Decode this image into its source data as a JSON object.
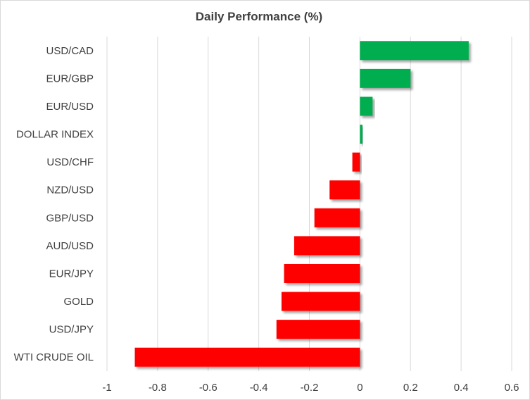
{
  "chart_data": {
    "type": "bar",
    "orientation": "horizontal",
    "title": "Daily Performance (%)",
    "categories": [
      "USD/CAD",
      "EUR/GBP",
      "EUR/USD",
      "DOLLAR INDEX",
      "USD/CHF",
      "NZD/USD",
      "GBP/USD",
      "AUD/USD",
      "EUR/JPY",
      "GOLD",
      "USD/JPY",
      "WTI CRUDE OIL"
    ],
    "values": [
      0.43,
      0.2,
      0.05,
      0.01,
      -0.03,
      -0.12,
      -0.18,
      -0.26,
      -0.3,
      -0.31,
      -0.33,
      -0.89
    ],
    "xlim": [
      -1,
      0.6
    ],
    "xticks": [
      "-1",
      "-0.8",
      "-0.6",
      "-0.4",
      "-0.2",
      "0",
      "0.2",
      "0.4",
      "0.6"
    ],
    "grid": true,
    "legend": "none",
    "colors": {
      "positive": "#00ad4f",
      "negative": "#ff0000",
      "grid": "#d9d9d9",
      "text": "#404040"
    }
  }
}
